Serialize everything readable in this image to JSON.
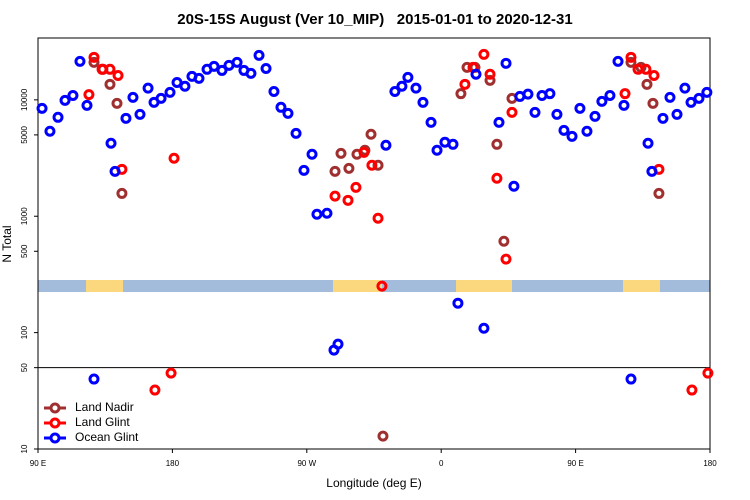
{
  "chart_data": {
    "type": "scatter",
    "title": "20S-15S August (Ver 10_MIP)   2015-01-01 to 2020-12-31",
    "x_label": "Longitude (deg E)",
    "y_label": "N Total",
    "log_y": true,
    "legend": "lower left",
    "reference_line": 50,
    "xlim": [
      90,
      540
    ],
    "xticks": [
      {
        "value": 90,
        "label": "90 E"
      },
      {
        "value": 180,
        "label": "180"
      },
      {
        "value": 270,
        "label": "90 W"
      },
      {
        "value": 360,
        "label": "0"
      },
      {
        "value": 450,
        "label": "90 E"
      },
      {
        "value": 540,
        "label": "180"
      }
    ],
    "ylim": [
      10,
      34000
    ],
    "yticks": [
      10,
      50,
      100,
      500,
      1000,
      5000,
      10000
    ],
    "series": [
      {
        "name": "Land Nadir",
        "color": "#a03030",
        "x": [
          127.5,
          133.5,
          138.2,
          142.9,
          146.2,
          288.9,
          292.9,
          298.2,
          303.6,
          308.9,
          313.0,
          317.7,
          321.0,
          373.2,
          377.3,
          382.6,
          392.7,
          397.3,
          402.0,
          407.4,
          487.1,
          493.8,
          497.8,
          501.8,
          505.8
        ],
        "values": [
          21000,
          18300,
          13600,
          9330,
          1570,
          2430,
          3470,
          2580,
          3410,
          3690,
          5060,
          2740,
          12.9,
          11300,
          19000,
          19000,
          14700,
          4150,
          610,
          10300,
          21000,
          19000,
          13600,
          9330,
          1570
        ]
      },
      {
        "name": "Land Glint",
        "color": "#ff0000",
        "x": [
          127.5,
          124.1,
          132.9,
          138.2,
          143.6,
          146.2,
          181.1,
          179.1,
          168.3,
          288.9,
          297.6,
          302.9,
          308.3,
          313.6,
          317.7,
          320.3,
          375.9,
          381.3,
          388.6,
          392.7,
          397.3,
          403.4,
          407.4,
          487.1,
          483.1,
          491.8,
          497.1,
          502.5,
          505.8,
          538.6,
          527.9
        ],
        "values": [
          23200,
          11100,
          18300,
          18300,
          16200,
          2530,
          3150,
          44.9,
          32.1,
          1490,
          1370,
          1770,
          3540,
          2740,
          961,
          251,
          13600,
          19000,
          24600,
          16600,
          2120,
          428,
          7810,
          23200,
          11300,
          18300,
          18300,
          16200,
          2530,
          44.9,
          32.1
        ]
      },
      {
        "name": "Ocean Glint",
        "color": "#0000ff",
        "x": [
          92.7,
          98.0,
          103.4,
          108.1,
          113.4,
          118.1,
          122.8,
          127.5,
          138.9,
          141.6,
          148.9,
          153.6,
          158.3,
          163.7,
          167.7,
          172.4,
          178.4,
          183.1,
          188.4,
          193.1,
          197.8,
          203.2,
          207.9,
          213.2,
          217.9,
          223.3,
          227.9,
          232.6,
          238.0,
          242.7,
          248.0,
          252.7,
          257.4,
          262.8,
          268.1,
          273.5,
          276.8,
          283.5,
          288.2,
          290.9,
          323.0,
          329.0,
          333.7,
          337.7,
          343.1,
          347.8,
          353.2,
          357.2,
          362.5,
          367.9,
          371.2,
          383.3,
          388.6,
          398.7,
          403.4,
          408.7,
          412.7,
          418.1,
          422.8,
          427.5,
          432.8,
          437.5,
          442.2,
          447.6,
          452.9,
          457.6,
          463.0,
          467.6,
          473.0,
          478.4,
          482.4,
          487.1,
          498.5,
          501.1,
          508.5,
          513.2,
          517.9,
          523.2,
          527.3,
          532.6,
          537.9
        ],
        "values": [
          8450,
          5370,
          7080,
          9900,
          10900,
          21400,
          8970,
          39.9,
          4240,
          2430,
          6940,
          10500,
          7510,
          12600,
          9520,
          10300,
          11600,
          14100,
          13100,
          15900,
          15300,
          18300,
          19400,
          17900,
          19800,
          21000,
          17900,
          16900,
          24100,
          18600,
          11800,
          8630,
          7660,
          5150,
          2480,
          3410,
          1040,
          1060,
          70.8,
          79.6,
          4070,
          11800,
          13100,
          15600,
          12600,
          9520,
          6410,
          3690,
          4320,
          4150,
          179,
          16600,
          109,
          6410,
          20600,
          1810,
          10700,
          11200,
          7810,
          10900,
          11300,
          7510,
          5470,
          4860,
          8450,
          5370,
          7210,
          9700,
          10900,
          21400,
          8970,
          39.9,
          4240,
          2430,
          6940,
          10500,
          7510,
          12600,
          9520,
          10300,
          11600
        ]
      }
    ]
  }
}
